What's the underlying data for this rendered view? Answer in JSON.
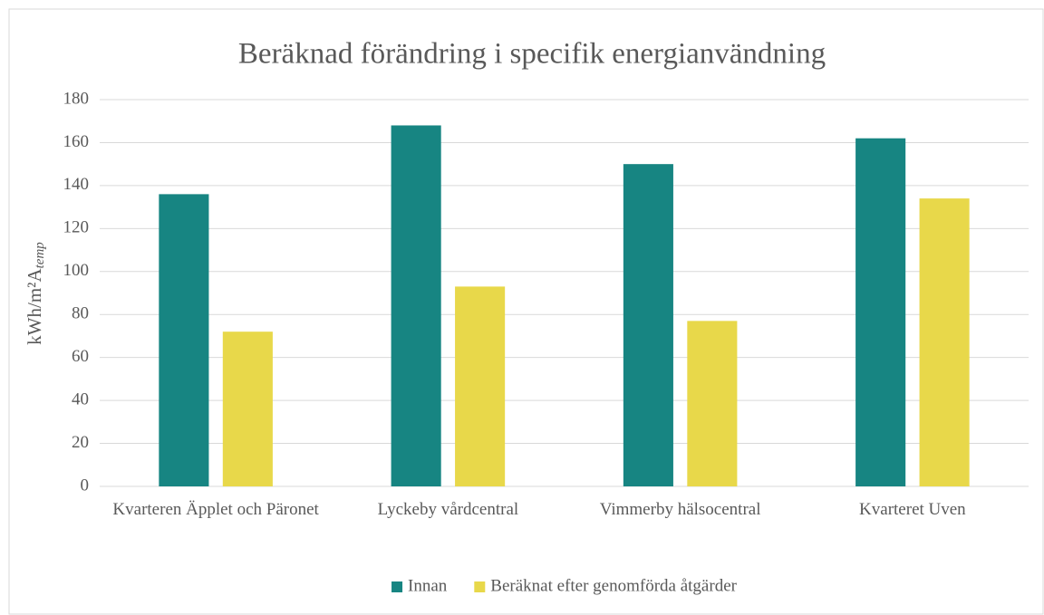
{
  "chart_data": {
    "type": "bar",
    "title": "Beräknad förändring i specifik energianvändning",
    "y_label": {
      "main": "kWh/m²A",
      "subscript": "temp"
    },
    "categories": [
      "Kvarteren Äpplet och Päronet",
      "Lyckeby vårdcentral",
      "Vimmerby hälsocentral",
      "Kvarteret Uven"
    ],
    "series": [
      {
        "name": "Innan",
        "color": "#178582",
        "values": [
          136,
          168,
          150,
          162
        ]
      },
      {
        "name": "Beräknat efter genomförda åtgärder",
        "color": "#e8d84a",
        "values": [
          72,
          93,
          77,
          134
        ]
      }
    ],
    "ylim": [
      0,
      180
    ],
    "yticks": [
      0,
      20,
      40,
      60,
      80,
      100,
      120,
      140,
      160,
      180
    ],
    "grid": true,
    "legend": "bottom"
  }
}
